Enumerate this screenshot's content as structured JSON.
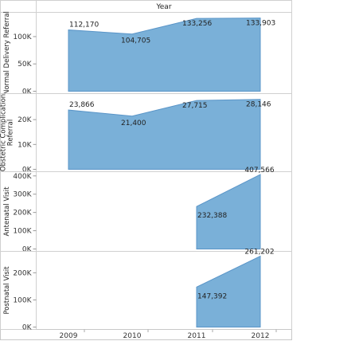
{
  "header": {
    "title": "Year"
  },
  "colors": {
    "area": "#7ab0d8",
    "line": "#5a95c8"
  },
  "chart_data": {
    "type": "area",
    "x": [
      "2009",
      "2010",
      "2011",
      "2012"
    ],
    "xlabel": "Year",
    "panels": [
      {
        "name": "Normal Delivery Referral",
        "label_lines": [
          "Normal Delivery Referral"
        ],
        "ylim": [
          0,
          140000
        ],
        "ticks": [
          {
            "v": 0,
            "label": "0K"
          },
          {
            "v": 50000,
            "label": "50K"
          },
          {
            "v": 100000,
            "label": "100K"
          }
        ],
        "values": [
          112170,
          104705,
          133256,
          133903
        ],
        "labels": [
          "112,170",
          "104,705",
          "133,256",
          "133,903"
        ]
      },
      {
        "name": "Obstetric Complication Referral",
        "label_lines": [
          "Obstetric Complication",
          "Referral"
        ],
        "ylim": [
          0,
          29500
        ],
        "ticks": [
          {
            "v": 0,
            "label": "0K"
          },
          {
            "v": 10000,
            "label": "10K"
          },
          {
            "v": 20000,
            "label": "20K"
          }
        ],
        "values": [
          23866,
          21400,
          27715,
          28146
        ],
        "labels": [
          "23,866",
          "21,400",
          "27,715",
          "28,146"
        ]
      },
      {
        "name": "Antenatal Visit",
        "label_lines": [
          "Antenatal Visit"
        ],
        "ylim": [
          0,
          410000
        ],
        "ticks": [
          {
            "v": 0,
            "label": "0K"
          },
          {
            "v": 100000,
            "label": "100K"
          },
          {
            "v": 200000,
            "label": "200K"
          },
          {
            "v": 300000,
            "label": "300K"
          },
          {
            "v": 400000,
            "label": "400K"
          }
        ],
        "values": [
          null,
          null,
          232388,
          407566
        ],
        "labels": [
          "",
          "",
          "232,388",
          "407,566"
        ]
      },
      {
        "name": "Postnatal Visit",
        "label_lines": [
          "Postnatal Visit"
        ],
        "ylim": [
          0,
          270000
        ],
        "ticks": [
          {
            "v": 0,
            "label": "0K"
          },
          {
            "v": 100000,
            "label": "100K"
          },
          {
            "v": 200000,
            "label": "200K"
          }
        ],
        "values": [
          null,
          null,
          147392,
          261202
        ],
        "labels": [
          "",
          "",
          "147,392",
          "261,202"
        ]
      }
    ]
  }
}
